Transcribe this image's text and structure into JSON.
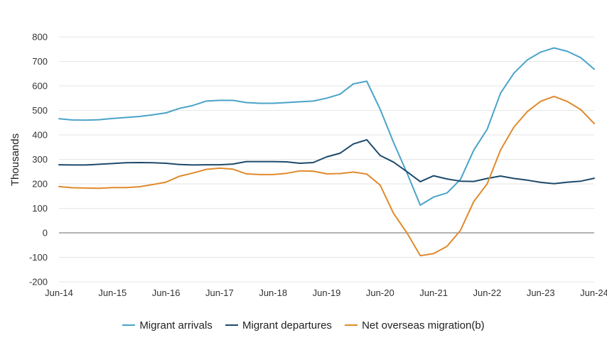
{
  "chart_data": {
    "type": "line",
    "title": "",
    "xlabel": "",
    "ylabel": "Thousands",
    "ylim": [
      -200,
      800
    ],
    "yticks": [
      "800",
      "700",
      "600",
      "500",
      "400",
      "300",
      "200",
      "100",
      "0",
      "-100",
      "-200"
    ],
    "ytick_values": [
      800,
      700,
      600,
      500,
      400,
      300,
      200,
      100,
      0,
      -100,
      -200
    ],
    "x": [
      "Jun-14",
      "Sep-14",
      "Dec-14",
      "Mar-15",
      "Jun-15",
      "Sep-15",
      "Dec-15",
      "Mar-16",
      "Jun-16",
      "Sep-16",
      "Dec-16",
      "Mar-17",
      "Jun-17",
      "Sep-17",
      "Dec-17",
      "Mar-18",
      "Jun-18",
      "Sep-18",
      "Dec-18",
      "Mar-19",
      "Jun-19",
      "Sep-19",
      "Dec-19",
      "Mar-20",
      "Jun-20",
      "Sep-20",
      "Dec-20",
      "Mar-21",
      "Jun-21",
      "Sep-21",
      "Dec-21",
      "Mar-22",
      "Jun-22",
      "Sep-22",
      "Dec-22",
      "Mar-23",
      "Jun-23",
      "Sep-23",
      "Dec-23",
      "Mar-24",
      "Jun-24"
    ],
    "xticks": [
      "Jun-14",
      "Jun-15",
      "Jun-16",
      "Jun-17",
      "Jun-18",
      "Jun-19",
      "Jun-20",
      "Jun-21",
      "Jun-22",
      "Jun-23",
      "Jun-24"
    ],
    "grid": true,
    "legend_position": "bottom",
    "series": [
      {
        "name": "Migrant arrivals",
        "color": "#4aa3c9",
        "values": [
          466,
          461,
          460,
          462,
          467,
          471,
          475,
          482,
          490,
          508,
          520,
          538,
          541,
          541,
          532,
          529,
          529,
          532,
          535,
          538,
          550,
          566,
          608,
          619,
          505,
          370,
          245,
          113,
          146,
          163,
          218,
          338,
          423,
          570,
          652,
          706,
          738,
          755,
          741,
          715,
          668
        ]
      },
      {
        "name": "Migrant departures",
        "color": "#1c4a6a",
        "values": [
          278,
          277,
          277,
          280,
          283,
          286,
          287,
          286,
          284,
          279,
          277,
          278,
          278,
          281,
          291,
          291,
          291,
          290,
          284,
          287,
          310,
          325,
          363,
          380,
          316,
          289,
          250,
          209,
          233,
          220,
          211,
          210,
          222,
          232,
          222,
          215,
          206,
          201,
          207,
          211,
          223
        ]
      },
      {
        "name": "Net overseas migration(b)",
        "color": "#e08a2c",
        "values": [
          189,
          184,
          183,
          182,
          185,
          185,
          188,
          197,
          207,
          231,
          244,
          259,
          264,
          260,
          241,
          238,
          238,
          243,
          253,
          252,
          241,
          242,
          248,
          240,
          195,
          80,
          0,
          -93,
          -85,
          -55,
          10,
          128,
          200,
          338,
          432,
          495,
          537,
          557,
          536,
          503,
          446
        ]
      }
    ]
  }
}
